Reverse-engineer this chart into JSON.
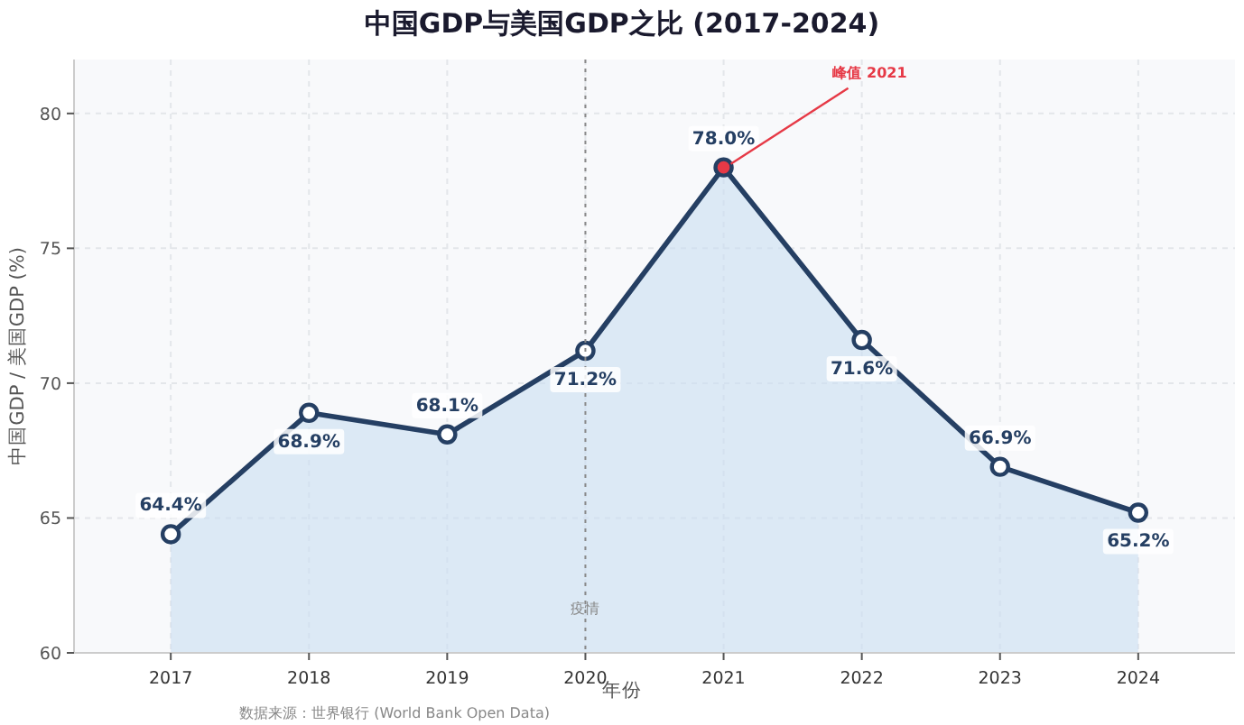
{
  "chart_data": {
    "type": "area",
    "title": "中国GDP与美国GDP之比 (2017-2024)",
    "xlabel": "年份",
    "ylabel": "中国GDP / 美国GDP (%)",
    "x": [
      2017,
      2018,
      2019,
      2020,
      2021,
      2022,
      2023,
      2024
    ],
    "series": [
      {
        "color": "#253f63",
        "values": [
          64.4,
          68.9,
          68.1,
          71.2,
          78.0,
          71.6,
          66.9,
          65.2
        ],
        "colors": [
          "#ffffff",
          "#ffffff",
          "#ffffff",
          "#ffffff",
          "#e63946",
          "#ffffff",
          "#ffffff",
          "#ffffff"
        ]
      }
    ],
    "value_labels": [
      "64.4%",
      "68.9%",
      "68.1%",
      "71.2%",
      "78.0%",
      "71.6%",
      "66.9%",
      "65.2%"
    ],
    "xlim": [
      2016.3,
      2024.7
    ],
    "xticks": [
      2017,
      2018,
      2019,
      2020,
      2021,
      2022,
      2023,
      2024
    ],
    "ylim": [
      60,
      82
    ],
    "yticks": [
      60,
      65,
      70,
      75,
      80
    ],
    "grid": true,
    "marker": "circle",
    "line_style": "solid",
    "ref_lines": [
      {
        "axis": "x",
        "value": 2020,
        "label": "疫情",
        "color": "#888888",
        "line_style": "dotted"
      }
    ],
    "annotations": [
      {
        "text": "峰值 2021",
        "x": 2021,
        "y": 78
      },
      "数据来源：世界银行 (World Bank Open Data)"
    ]
  }
}
